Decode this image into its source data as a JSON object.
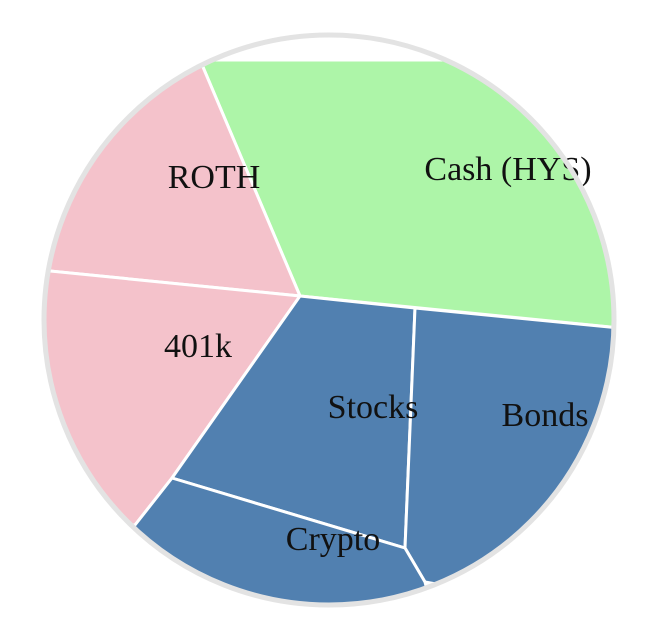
{
  "chart_data": {
    "type": "pie",
    "title": "",
    "legend": "none",
    "cells": [
      {
        "label": "Cash (HYS)",
        "group": "cash",
        "color": "#adf5a8"
      },
      {
        "label": "ROTH",
        "group": "retirement",
        "color": "#f4c2cb"
      },
      {
        "label": "401k",
        "group": "retirement",
        "color": "#f4c2cb"
      },
      {
        "label": "Stocks",
        "group": "investments",
        "color": "#5180b0"
      },
      {
        "label": "Bonds",
        "group": "investments",
        "color": "#5180b0"
      },
      {
        "label": "Crypto",
        "group": "investments",
        "color": "#5180b0"
      }
    ]
  }
}
